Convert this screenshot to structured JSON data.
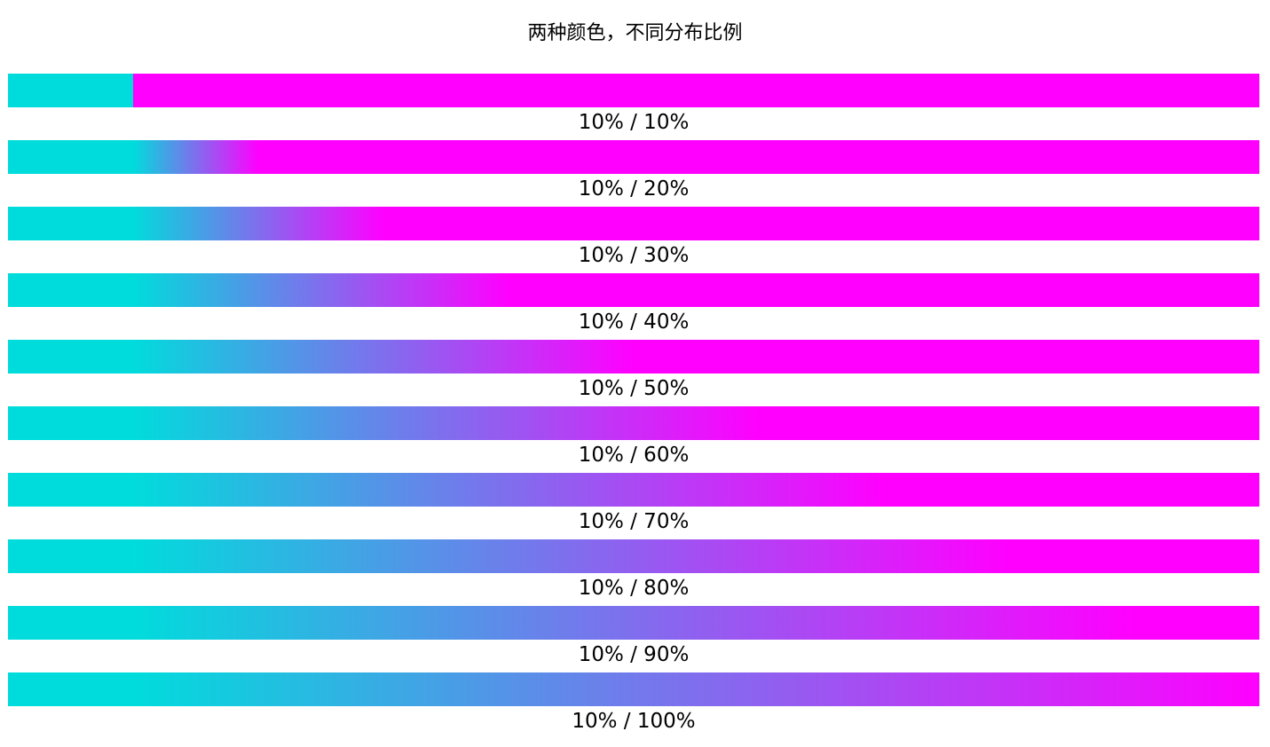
{
  "title": "两种颜色，不同分布比例",
  "colors": {
    "start": "#00dcdc",
    "end": "#ff00ff"
  },
  "rows": [
    {
      "label": "10% / 10%",
      "start_stop": 10,
      "end_stop": 10
    },
    {
      "label": "10% / 20%",
      "start_stop": 10,
      "end_stop": 20
    },
    {
      "label": "10% / 30%",
      "start_stop": 10,
      "end_stop": 30
    },
    {
      "label": "10% / 40%",
      "start_stop": 10,
      "end_stop": 40
    },
    {
      "label": "10% / 50%",
      "start_stop": 10,
      "end_stop": 50
    },
    {
      "label": "10% / 60%",
      "start_stop": 10,
      "end_stop": 60
    },
    {
      "label": "10% / 70%",
      "start_stop": 10,
      "end_stop": 70
    },
    {
      "label": "10% / 80%",
      "start_stop": 10,
      "end_stop": 80
    },
    {
      "label": "10% / 90%",
      "start_stop": 10,
      "end_stop": 90
    },
    {
      "label": "10% / 100%",
      "start_stop": 10,
      "end_stop": 100
    }
  ]
}
